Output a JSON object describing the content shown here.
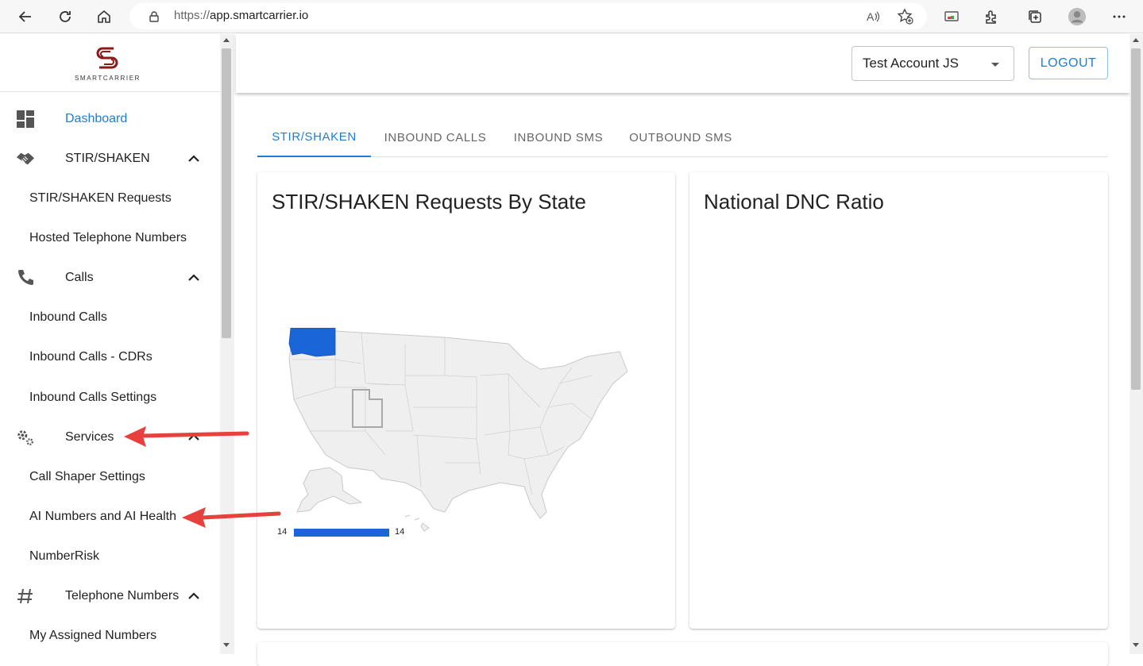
{
  "browser": {
    "url_proto": "https://",
    "url_host": "app.smartcarrier.io"
  },
  "logo": {
    "text": "SMARTCARRIER"
  },
  "sidebar": {
    "items": [
      {
        "label": "Dashboard",
        "icon": "dashboard-icon",
        "active": true
      },
      {
        "label": "STIR/SHAKEN",
        "icon": "handshake-icon"
      },
      {
        "label": "STIR/SHAKEN Requests"
      },
      {
        "label": "Hosted Telephone Numbers"
      },
      {
        "label": "Calls",
        "icon": "phone-icon"
      },
      {
        "label": "Inbound Calls"
      },
      {
        "label": "Inbound Calls - CDRs"
      },
      {
        "label": "Inbound Calls Settings"
      },
      {
        "label": "Services",
        "icon": "gears-icon"
      },
      {
        "label": "Call Shaper Settings"
      },
      {
        "label": "AI Numbers and AI Health"
      },
      {
        "label": "NumberRisk"
      },
      {
        "label": "Telephone Numbers",
        "icon": "hash-icon"
      },
      {
        "label": "My Assigned Numbers"
      }
    ]
  },
  "header": {
    "account": "Test Account JS",
    "logout_label": "LOGOUT"
  },
  "tabs": [
    {
      "label": "STIR/SHAKEN",
      "active": true
    },
    {
      "label": "INBOUND CALLS"
    },
    {
      "label": "INBOUND SMS"
    },
    {
      "label": "OUTBOUND SMS"
    }
  ],
  "cards": {
    "left_title": "STIR/SHAKEN Requests By State",
    "right_title": "National DNC Ratio"
  },
  "map": {
    "highlighted_state": "Washington",
    "highlight_color": "#1a66d9",
    "selected_outline_state": "Utah",
    "legend_min": "14",
    "legend_max": "14"
  },
  "colors": {
    "accent": "#1a7fd8",
    "annotation_arrow": "#e8413d"
  }
}
